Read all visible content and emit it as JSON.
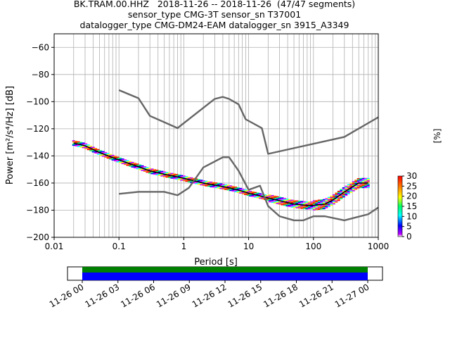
{
  "figure": {
    "title_lines": [
      "BK.TRAM.00.HHZ   2018-11-26 -- 2018-11-26  (47/47 segments)",
      "sensor_type CMG-3T sensor_sn T37001",
      "datalogger_type CMG-DM24-EAM datalogger_sn 3915_A3349"
    ]
  },
  "chart_data": [
    {
      "type": "heatmap",
      "title": "BK.TRAM.00.HHZ   2018-11-26 -- 2018-11-26  (47/47 segments)",
      "xlabel": "Period [s]",
      "ylabel": "Power [m²/s⁴/Hz] [dB]",
      "xscale": "log",
      "xlim": [
        0.01,
        1000
      ],
      "ylim": [
        -200,
        -50
      ],
      "x_tick_labels": [
        "0.01",
        "0.1",
        "1",
        "10",
        "100",
        "1000"
      ],
      "x_tick_values": [
        0.01,
        0.1,
        1,
        10,
        100,
        1000
      ],
      "y_tick_values": [
        -200,
        -180,
        -160,
        -140,
        -120,
        -100,
        -80,
        -60
      ],
      "grid": true,
      "colorbar": {
        "label": "[%]",
        "range": [
          0,
          30
        ],
        "tick_values": [
          0,
          5,
          10,
          15,
          20,
          25,
          30
        ]
      },
      "series": [
        {
          "x": [
            0.02,
            0.03,
            0.05,
            0.1,
            0.2,
            0.3,
            0.5,
            1,
            2,
            3,
            5,
            8,
            10,
            15,
            20,
            30,
            50,
            80,
            100,
            150,
            200,
            300,
            500,
            700
          ],
          "y": [
            -130.5,
            -132.5,
            -137.5,
            -143,
            -148,
            -151,
            -153.5,
            -156.5,
            -160,
            -161.5,
            -163.5,
            -166,
            -167.5,
            -169.5,
            -171,
            -173,
            -175.5,
            -176.5,
            -176.5,
            -175.5,
            -172.5,
            -166.5,
            -160,
            -160
          ]
        },
        {
          "x": [
            0.1,
            0.2,
            0.3,
            0.8,
            3,
            4,
            5,
            7,
            9,
            16,
            20,
            300,
            1000
          ],
          "y": [
            -91.5,
            -97.5,
            -110.5,
            -119.5,
            -98,
            -96.5,
            -98,
            -102,
            -113,
            -119.5,
            -138.5,
            -126,
            -111.5
          ]
        },
        {
          "x": [
            0.1,
            0.2,
            0.5,
            0.8,
            1,
            1.2,
            2,
            4,
            5,
            7,
            10,
            15,
            20,
            30,
            50,
            70,
            100,
            150,
            300,
            700,
            1000
          ],
          "y": [
            -168,
            -166.5,
            -166.5,
            -169,
            -166,
            -163.5,
            -148.5,
            -141,
            -141,
            -151,
            -165,
            -162,
            -177,
            -184.5,
            -187.5,
            -187.5,
            -184.5,
            -184.5,
            -187.5,
            -183,
            -178
          ]
        }
      ]
    },
    {
      "type": "timeline",
      "x_tick_labels": [
        "11-26 00",
        "11-26 03",
        "11-26 06",
        "11-26 09",
        "11-26 12",
        "11-26 15",
        "11-26 18",
        "11-26 21",
        "11-27 00"
      ],
      "start": "11-26 00",
      "end": "11-27 00",
      "segments": 47,
      "colors": {
        "top": "#008000",
        "bottom": "#0000ff"
      }
    }
  ]
}
